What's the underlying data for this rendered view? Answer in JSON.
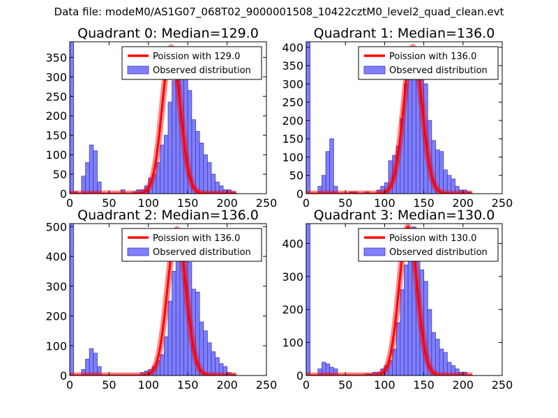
{
  "suptitle": "Data file: modeM0/AS1G07_068T02_9000001508_10422cztM0_level2_quad_clean.evt",
  "chart_data": [
    {
      "type": "bar",
      "title": "Quadrant 0: Median=129.0",
      "median": 129.0,
      "xlim": [
        0,
        250
      ],
      "ylim": [
        0,
        390
      ],
      "xticks": [
        0,
        50,
        100,
        150,
        200,
        250
      ],
      "yticks": [
        0,
        50,
        100,
        150,
        200,
        250,
        300,
        350
      ],
      "legend": {
        "location": "top-right",
        "line_label": "Poission with 129.0",
        "bar_label": "Observed distribution"
      },
      "bins": [
        [
          0,
          390
        ],
        [
          5,
          5
        ],
        [
          15,
          45
        ],
        [
          20,
          80
        ],
        [
          25,
          125
        ],
        [
          30,
          110
        ],
        [
          35,
          30
        ],
        [
          65,
          10
        ],
        [
          80,
          5
        ],
        [
          85,
          10
        ],
        [
          90,
          10
        ],
        [
          95,
          20
        ],
        [
          100,
          40
        ],
        [
          105,
          50
        ],
        [
          110,
          80
        ],
        [
          115,
          125
        ],
        [
          120,
          150
        ],
        [
          125,
          235
        ],
        [
          130,
          290
        ],
        [
          135,
          365
        ],
        [
          140,
          350
        ],
        [
          145,
          320
        ],
        [
          150,
          265
        ],
        [
          155,
          190
        ],
        [
          160,
          160
        ],
        [
          165,
          130
        ],
        [
          170,
          100
        ],
        [
          175,
          80
        ],
        [
          180,
          50
        ],
        [
          185,
          30
        ],
        [
          190,
          20
        ],
        [
          195,
          10
        ],
        [
          200,
          10
        ],
        [
          205,
          5
        ]
      ],
      "fit_peak": 375
    },
    {
      "type": "bar",
      "title": "Quadrant 1: Median=136.0",
      "median": 136.0,
      "xlim": [
        0,
        250
      ],
      "ylim": [
        0,
        415
      ],
      "xticks": [
        0,
        50,
        100,
        150,
        200,
        250
      ],
      "yticks": [
        0,
        50,
        100,
        150,
        200,
        250,
        300,
        350,
        400
      ],
      "legend": {
        "location": "top-right",
        "line_label": "Poission with 136.0",
        "bar_label": "Observed distribution"
      },
      "bins": [
        [
          0,
          415
        ],
        [
          15,
          20
        ],
        [
          20,
          50
        ],
        [
          25,
          115
        ],
        [
          30,
          150
        ],
        [
          35,
          20
        ],
        [
          55,
          5
        ],
        [
          60,
          5
        ],
        [
          75,
          5
        ],
        [
          90,
          10
        ],
        [
          95,
          20
        ],
        [
          100,
          30
        ],
        [
          105,
          90
        ],
        [
          110,
          105
        ],
        [
          115,
          130
        ],
        [
          120,
          205
        ],
        [
          125,
          300
        ],
        [
          130,
          320
        ],
        [
          135,
          380
        ],
        [
          140,
          360
        ],
        [
          145,
          315
        ],
        [
          150,
          300
        ],
        [
          155,
          200
        ],
        [
          160,
          145
        ],
        [
          165,
          120
        ],
        [
          170,
          115
        ],
        [
          175,
          65
        ],
        [
          180,
          50
        ],
        [
          185,
          40
        ],
        [
          190,
          20
        ],
        [
          195,
          10
        ],
        [
          200,
          10
        ],
        [
          205,
          5
        ]
      ],
      "fit_peak": 400
    },
    {
      "type": "bar",
      "title": "Quadrant 2: Median=136.0",
      "median": 136.0,
      "xlim": [
        0,
        250
      ],
      "ylim": [
        0,
        510
      ],
      "xticks": [
        0,
        50,
        100,
        150,
        200,
        250
      ],
      "yticks": [
        0,
        100,
        200,
        300,
        400,
        500
      ],
      "legend": {
        "location": "top-right",
        "line_label": "Poission with 136.0",
        "bar_label": "Observed distribution"
      },
      "bins": [
        [
          0,
          510
        ],
        [
          15,
          20
        ],
        [
          20,
          55
        ],
        [
          25,
          90
        ],
        [
          30,
          75
        ],
        [
          35,
          30
        ],
        [
          90,
          10
        ],
        [
          95,
          15
        ],
        [
          100,
          20
        ],
        [
          105,
          30
        ],
        [
          110,
          50
        ],
        [
          115,
          70
        ],
        [
          120,
          130
        ],
        [
          125,
          250
        ],
        [
          130,
          350
        ],
        [
          135,
          420
        ],
        [
          140,
          490
        ],
        [
          145,
          455
        ],
        [
          150,
          380
        ],
        [
          155,
          290
        ],
        [
          160,
          280
        ],
        [
          165,
          180
        ],
        [
          170,
          150
        ],
        [
          175,
          110
        ],
        [
          180,
          80
        ],
        [
          185,
          60
        ],
        [
          190,
          40
        ],
        [
          195,
          30
        ],
        [
          200,
          10
        ],
        [
          205,
          5
        ]
      ],
      "fit_peak": 490
    },
    {
      "type": "bar",
      "title": "Quadrant 3: Median=130.0",
      "median": 130.0,
      "xlim": [
        0,
        250
      ],
      "ylim": [
        0,
        460
      ],
      "xticks": [
        0,
        50,
        100,
        150,
        200,
        250
      ],
      "yticks": [
        0,
        100,
        200,
        300,
        400
      ],
      "legend": {
        "location": "top-right",
        "line_label": "Poission with 130.0",
        "bar_label": "Observed distribution"
      },
      "bins": [
        [
          0,
          460
        ],
        [
          15,
          20
        ],
        [
          20,
          40
        ],
        [
          25,
          35
        ],
        [
          30,
          25
        ],
        [
          35,
          20
        ],
        [
          75,
          5
        ],
        [
          80,
          5
        ],
        [
          85,
          10
        ],
        [
          90,
          10
        ],
        [
          95,
          20
        ],
        [
          100,
          30
        ],
        [
          105,
          45
        ],
        [
          110,
          80
        ],
        [
          115,
          160
        ],
        [
          120,
          260
        ],
        [
          125,
          335
        ],
        [
          130,
          400
        ],
        [
          135,
          450
        ],
        [
          140,
          350
        ],
        [
          145,
          320
        ],
        [
          150,
          285
        ],
        [
          155,
          200
        ],
        [
          160,
          130
        ],
        [
          165,
          110
        ],
        [
          170,
          80
        ],
        [
          175,
          70
        ],
        [
          180,
          40
        ],
        [
          185,
          30
        ],
        [
          190,
          20
        ],
        [
          195,
          10
        ],
        [
          200,
          10
        ]
      ],
      "fit_peak": 450
    }
  ]
}
